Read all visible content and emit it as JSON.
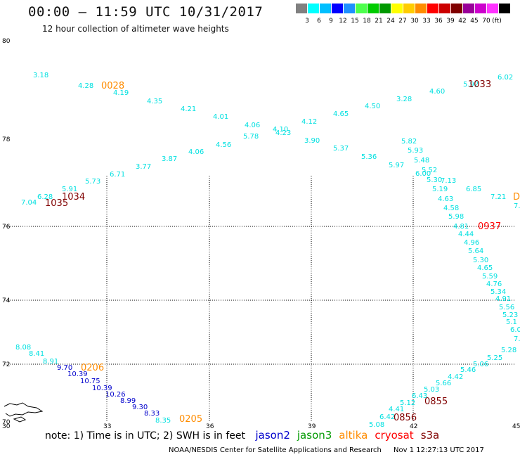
{
  "header": {
    "title": "00:00 – 11:59 UTC 10/31/2017",
    "subtitle": "12 hour collection of altimeter wave heights"
  },
  "legend": {
    "unit": "(ft)",
    "colors": [
      "#808080",
      "#00ffff",
      "#00bfff",
      "#0000ff",
      "#1e90ff",
      "#4dff4d",
      "#00cc00",
      "#009900",
      "#ffff00",
      "#ffcc00",
      "#ff8c00",
      "#ff0000",
      "#cc0000",
      "#800000",
      "#990099",
      "#cc00cc",
      "#ff33ff",
      "#000000"
    ],
    "labels": [
      "3",
      "6",
      "9",
      "12",
      "15",
      "18",
      "21",
      "24",
      "27",
      "30",
      "33",
      "36",
      "39",
      "42",
      "45",
      "70"
    ]
  },
  "axes": {
    "lat_labels": [
      "80",
      "78",
      "76",
      "74",
      "72",
      "70"
    ],
    "lon_labels": [
      "30",
      "33",
      "36",
      "39",
      "42",
      "45"
    ]
  },
  "colors": {
    "cyan": "#00e0e0",
    "blue": "#0000cc",
    "orange": "#ff8c00",
    "darkred": "#800000",
    "red": "#ff0000"
  },
  "wave_values": [
    {
      "t": "3.18",
      "c": "cyan"
    },
    {
      "t": "4.28",
      "c": "cyan"
    },
    {
      "t": "4.19",
      "c": "cyan"
    },
    {
      "t": "4.35",
      "c": "cyan"
    },
    {
      "t": "4.21",
      "c": "cyan"
    },
    {
      "t": "4.01",
      "c": "cyan"
    },
    {
      "t": "4.06",
      "c": "cyan"
    },
    {
      "t": "5.78",
      "c": "cyan"
    },
    {
      "t": "4.10",
      "c": "cyan"
    },
    {
      "t": "4.23",
      "c": "cyan"
    },
    {
      "t": "4.12",
      "c": "cyan"
    },
    {
      "t": "4.65",
      "c": "cyan"
    },
    {
      "t": "4.50",
      "c": "cyan"
    },
    {
      "t": "3.28",
      "c": "cyan"
    },
    {
      "t": "4.60",
      "c": "cyan"
    },
    {
      "t": "5.92",
      "c": "cyan"
    },
    {
      "t": "6.02",
      "c": "cyan"
    },
    {
      "t": "4.56",
      "c": "cyan"
    },
    {
      "t": "4.06",
      "c": "cyan"
    },
    {
      "t": "3.87",
      "c": "cyan"
    },
    {
      "t": "3.77",
      "c": "cyan"
    },
    {
      "t": "6.71",
      "c": "cyan"
    },
    {
      "t": "5.73",
      "c": "cyan"
    },
    {
      "t": "5.91",
      "c": "cyan"
    },
    {
      "t": "6.28",
      "c": "cyan"
    },
    {
      "t": "7.04",
      "c": "cyan"
    },
    {
      "t": "3.90",
      "c": "cyan"
    },
    {
      "t": "5.37",
      "c": "cyan"
    },
    {
      "t": "5.36",
      "c": "cyan"
    },
    {
      "t": "5.97",
      "c": "cyan"
    },
    {
      "t": "5.82",
      "c": "cyan"
    },
    {
      "t": "5.93",
      "c": "cyan"
    },
    {
      "t": "5.48",
      "c": "cyan"
    },
    {
      "t": "5.52",
      "c": "cyan"
    },
    {
      "t": "6.00",
      "c": "cyan"
    },
    {
      "t": "5.30",
      "c": "cyan"
    },
    {
      "t": "7.13",
      "c": "cyan"
    },
    {
      "t": "5.19",
      "c": "cyan"
    },
    {
      "t": "6.85",
      "c": "cyan"
    },
    {
      "t": "7.21",
      "c": "cyan"
    },
    {
      "t": "4.63",
      "c": "cyan"
    },
    {
      "t": "4.58",
      "c": "cyan"
    },
    {
      "t": "5.98",
      "c": "cyan"
    },
    {
      "t": "4.81",
      "c": "cyan"
    },
    {
      "t": "4.44",
      "c": "cyan"
    },
    {
      "t": "4.96",
      "c": "cyan"
    },
    {
      "t": "5.64",
      "c": "cyan"
    },
    {
      "t": "5.30",
      "c": "cyan"
    },
    {
      "t": "4.65",
      "c": "cyan"
    },
    {
      "t": "5.59",
      "c": "cyan"
    },
    {
      "t": "4.76",
      "c": "cyan"
    },
    {
      "t": "5.34",
      "c": "cyan"
    },
    {
      "t": "4.91",
      "c": "cyan"
    },
    {
      "t": "5.56",
      "c": "cyan"
    },
    {
      "t": "5.23",
      "c": "cyan"
    },
    {
      "t": "5.1",
      "c": "cyan"
    },
    {
      "t": "6.0",
      "c": "cyan"
    },
    {
      "t": "7.",
      "c": "cyan"
    },
    {
      "t": "5.28",
      "c": "cyan"
    },
    {
      "t": "5.25",
      "c": "cyan"
    },
    {
      "t": "5.06",
      "c": "cyan"
    },
    {
      "t": "5.46",
      "c": "cyan"
    },
    {
      "t": "4.42",
      "c": "cyan"
    },
    {
      "t": "5.66",
      "c": "cyan"
    },
    {
      "t": "5.03",
      "c": "cyan"
    },
    {
      "t": "6.43",
      "c": "cyan"
    },
    {
      "t": "5.12",
      "c": "cyan"
    },
    {
      "t": "4.41",
      "c": "cyan"
    },
    {
      "t": "6.42",
      "c": "cyan"
    },
    {
      "t": "5.08",
      "c": "cyan"
    },
    {
      "t": "7.",
      "c": "cyan"
    },
    {
      "t": "8.08",
      "c": "cyan"
    },
    {
      "t": "8.41",
      "c": "cyan"
    },
    {
      "t": "8.91",
      "c": "cyan"
    },
    {
      "t": "9.70",
      "c": "blue"
    },
    {
      "t": "10.39",
      "c": "blue"
    },
    {
      "t": "10.75",
      "c": "blue"
    },
    {
      "t": "10.39",
      "c": "blue"
    },
    {
      "t": "10.26",
      "c": "blue"
    },
    {
      "t": "8.99",
      "c": "blue"
    },
    {
      "t": "9.30",
      "c": "blue"
    },
    {
      "t": "8.33",
      "c": "blue"
    },
    {
      "t": "8.35",
      "c": "cyan"
    }
  ],
  "time_labels": [
    {
      "t": "0028",
      "c": "orange"
    },
    {
      "t": "1033",
      "c": "darkred"
    },
    {
      "t": "1034",
      "c": "darkred"
    },
    {
      "t": "1035",
      "c": "darkred"
    },
    {
      "t": "0937",
      "c": "red"
    },
    {
      "t": "D",
      "c": "orange"
    },
    {
      "t": "0206",
      "c": "orange"
    },
    {
      "t": "0205",
      "c": "orange"
    },
    {
      "t": "0855",
      "c": "darkred"
    },
    {
      "t": "0856",
      "c": "darkred"
    }
  ],
  "note": {
    "text": "note: 1) Time is in UTC; 2) SWH is in feet",
    "satellites": [
      {
        "name": "jason2",
        "color": "#0000cc"
      },
      {
        "name": "jason3",
        "color": "#009900"
      },
      {
        "name": "altika",
        "color": "#ff8c00"
      },
      {
        "name": "cryosat",
        "color": "#ff0000"
      },
      {
        "name": "s3a",
        "color": "#800000"
      }
    ]
  },
  "footer": {
    "agency": "NOAA/NESDIS Center for Satellite Applications and Research",
    "timestamp": "Nov  1 12:27:13 UTC 2017"
  }
}
